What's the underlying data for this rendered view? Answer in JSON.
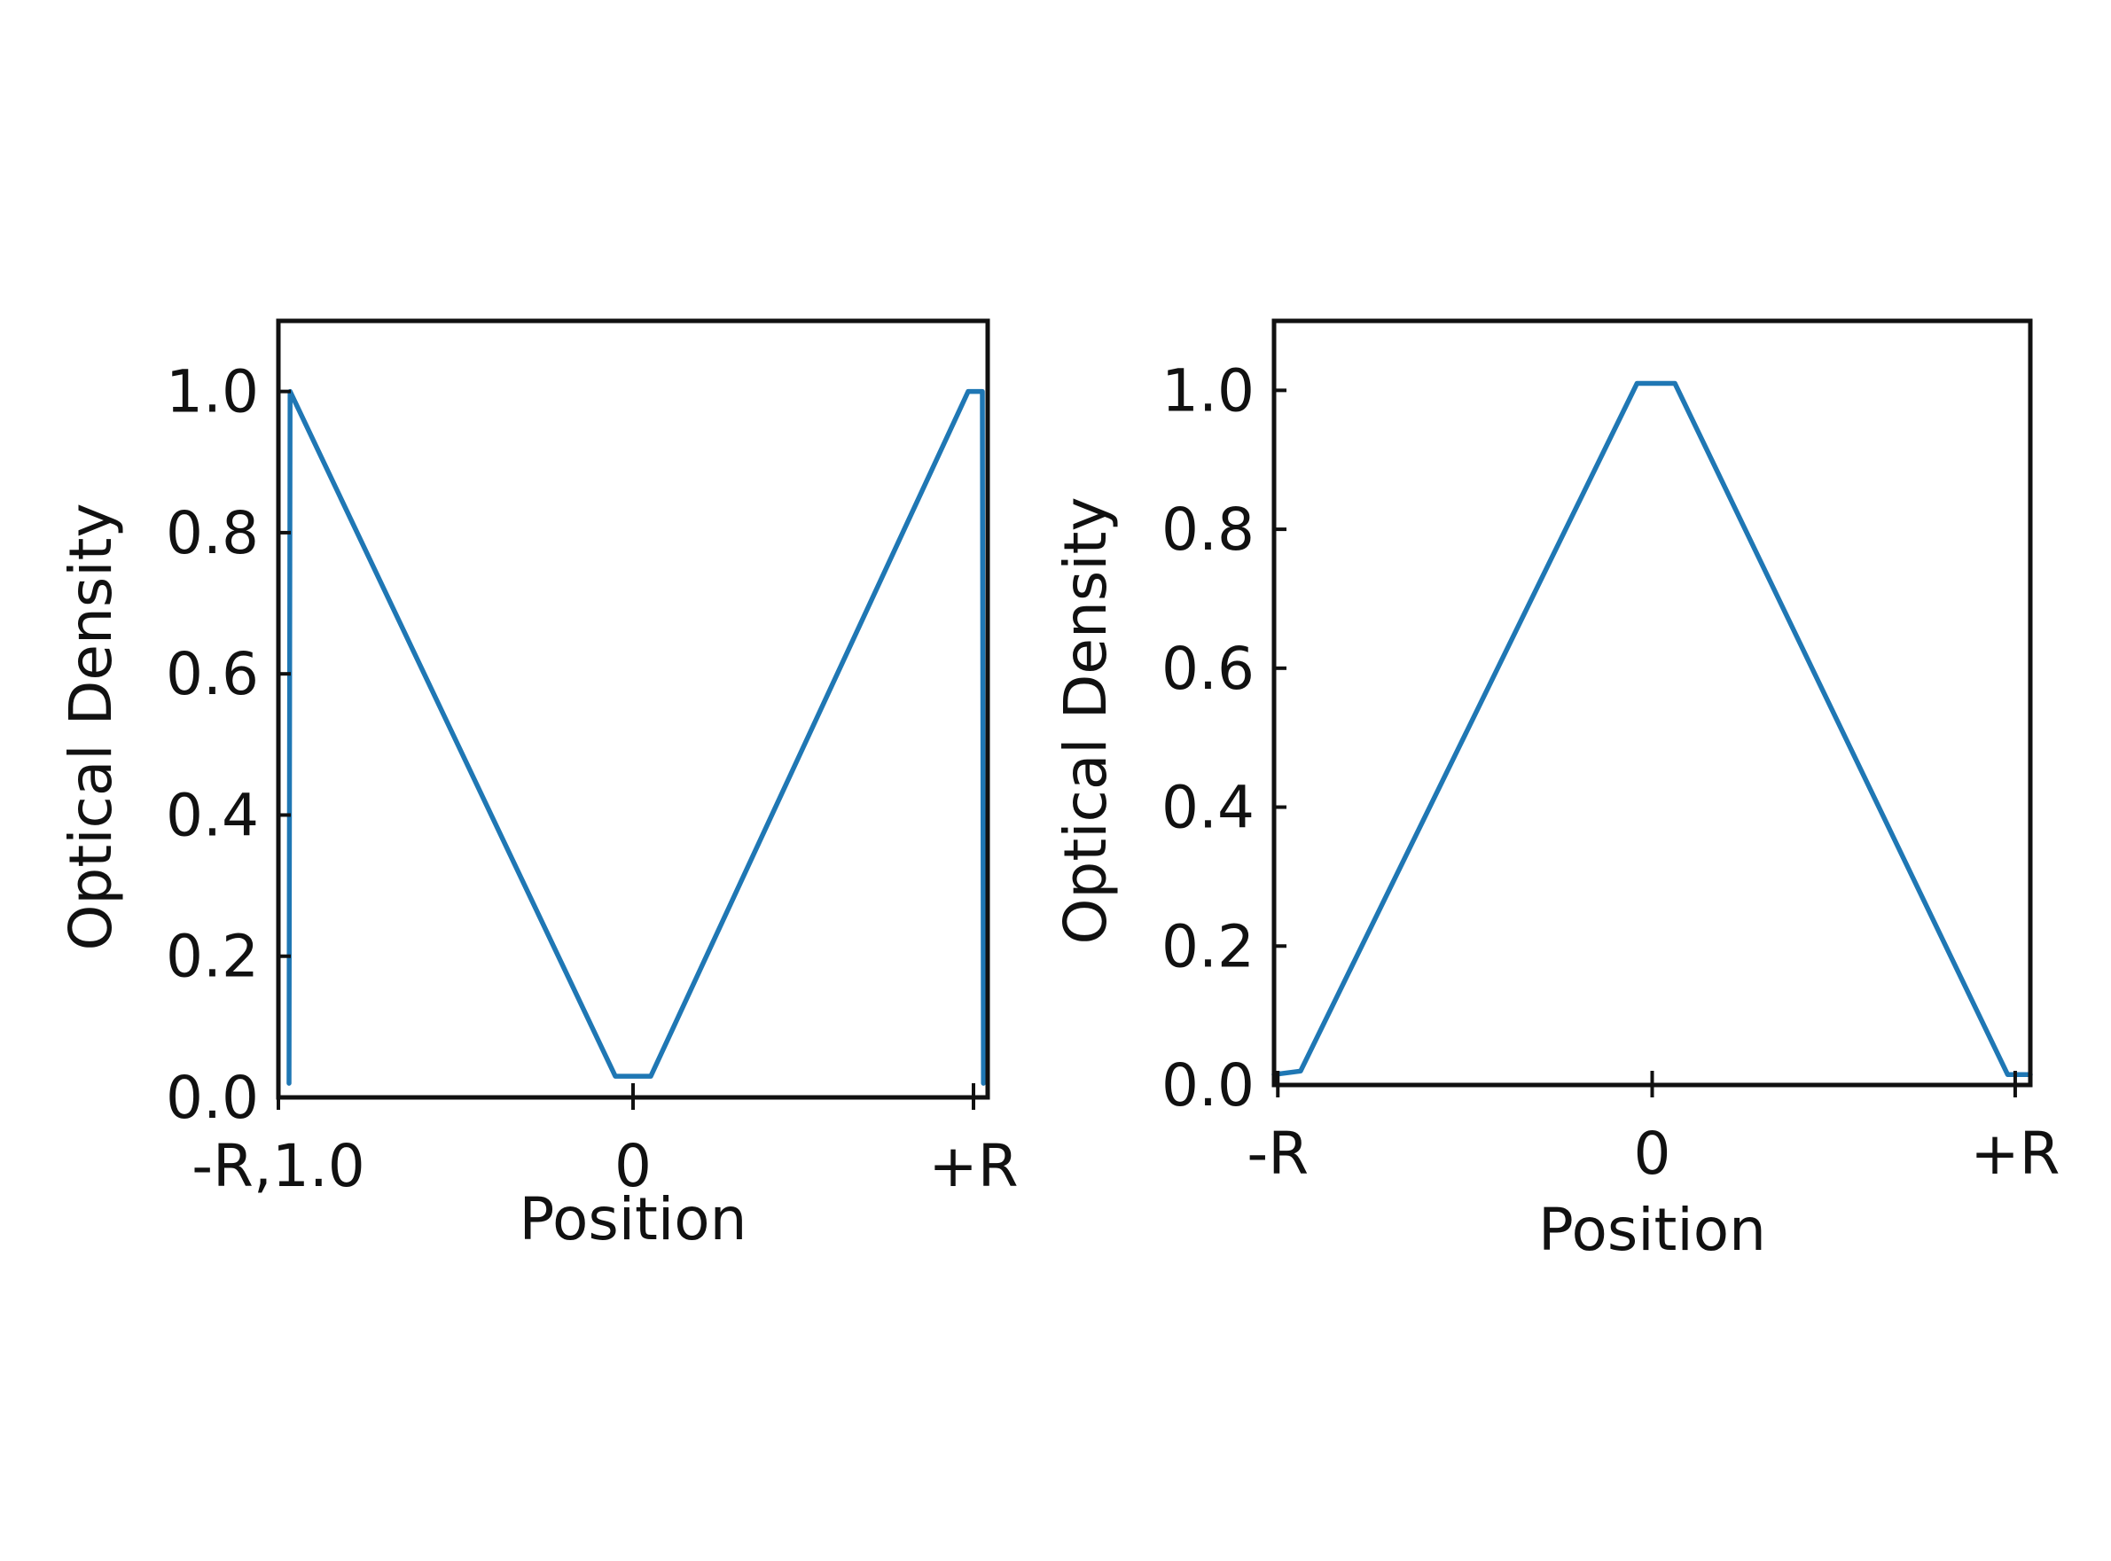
{
  "chart_data": [
    {
      "type": "line",
      "title": "",
      "xlabel": "Position",
      "ylabel": "Optical Density",
      "xlim": [
        -1.0,
        1.0
      ],
      "ylim": [
        0.0,
        1.1
      ],
      "x_ticks": [
        {
          "value": -1.0,
          "label": "-R,1.0"
        },
        {
          "value": 0.0,
          "label": "0"
        },
        {
          "value": 0.96,
          "label": "+R"
        }
      ],
      "y_ticks": [
        {
          "value": 0.0,
          "label": "0.0"
        },
        {
          "value": 0.2,
          "label": "0.2"
        },
        {
          "value": 0.4,
          "label": "0.4"
        },
        {
          "value": 0.6,
          "label": "0.6"
        },
        {
          "value": 0.8,
          "label": "0.8"
        },
        {
          "value": 1.0,
          "label": "1.0"
        }
      ],
      "grid": false,
      "series": [
        {
          "name": "",
          "color": "#1f77b4",
          "points": [
            [
              -0.97,
              0.02
            ],
            [
              -0.967,
              1.0
            ],
            [
              -0.05,
              0.03
            ],
            [
              0.05,
              0.03
            ],
            [
              0.945,
              1.0
            ],
            [
              0.985,
              1.0
            ],
            [
              0.988,
              0.02
            ]
          ]
        }
      ]
    },
    {
      "type": "line",
      "title": "",
      "xlabel": "Position",
      "ylabel": "Optical Density",
      "xlim": [
        -1.0,
        1.0
      ],
      "ylim": [
        0.0,
        1.1
      ],
      "x_ticks": [
        {
          "value": -0.99,
          "label": "-R"
        },
        {
          "value": 0.0,
          "label": "0"
        },
        {
          "value": 0.96,
          "label": "+R"
        }
      ],
      "y_ticks": [
        {
          "value": 0.0,
          "label": "0.0"
        },
        {
          "value": 0.2,
          "label": "0.2"
        },
        {
          "value": 0.4,
          "label": "0.4"
        },
        {
          "value": 0.6,
          "label": "0.6"
        },
        {
          "value": 0.8,
          "label": "0.8"
        },
        {
          "value": 1.0,
          "label": "1.0"
        }
      ],
      "grid": false,
      "series": [
        {
          "name": "",
          "color": "#1f77b4",
          "points": [
            [
              -1.0,
              0.015
            ],
            [
              -0.93,
              0.02
            ],
            [
              -0.04,
              1.01
            ],
            [
              0.06,
              1.01
            ],
            [
              0.94,
              0.015
            ],
            [
              1.0,
              0.015
            ]
          ]
        }
      ]
    }
  ]
}
